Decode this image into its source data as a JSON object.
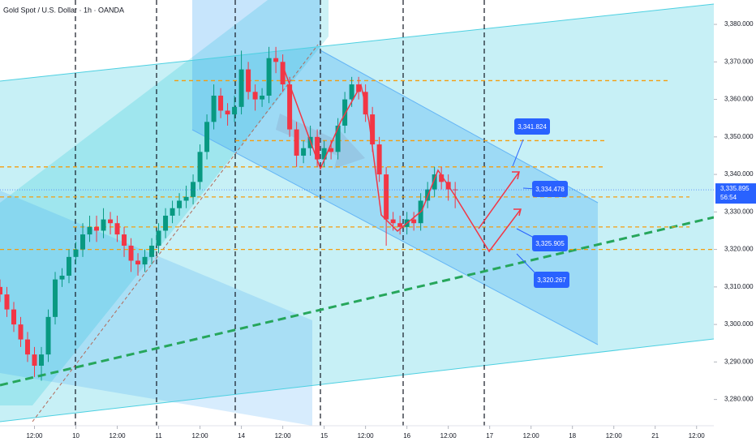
{
  "chart_data": {
    "type": "candlestick",
    "title": "Gold Spot / U.S. Dollar · 1h · OANDA",
    "x": [
      -22,
      -20,
      -18,
      -16,
      -14,
      -12,
      -10,
      -8,
      -6,
      -4,
      -2,
      0,
      2,
      4,
      6,
      8,
      10,
      12,
      14,
      16,
      18,
      20,
      22,
      24,
      26,
      28,
      30,
      32,
      34,
      36,
      38,
      40,
      42,
      44,
      46,
      48,
      50,
      52,
      54,
      56,
      58,
      60,
      62,
      64,
      66,
      68,
      70,
      72,
      74,
      76,
      78,
      80,
      82,
      84,
      86,
      88,
      90,
      92,
      94,
      96,
      98,
      100,
      102,
      104,
      106,
      108,
      110
    ],
    "open": [
      3310,
      3308,
      3304,
      3300,
      3296,
      3292,
      3289,
      3292,
      3302,
      3312,
      3313,
      3318,
      3320,
      3324,
      3326,
      3325,
      3328,
      3327,
      3324,
      3321,
      3317,
      3316,
      3318,
      3321,
      3325,
      3329,
      3331,
      3333,
      3334,
      3338,
      3346,
      3354,
      3361,
      3357,
      3356,
      3358,
      3368,
      3362,
      3360,
      3361,
      3371,
      3370,
      3364,
      3352,
      3345,
      3347,
      3350,
      3344,
      3347,
      3346,
      3353,
      3360,
      3364,
      3362,
      3356,
      3348,
      3340,
      3328,
      3327,
      3326,
      3328,
      3327,
      3333,
      3336,
      3340,
      3338,
      3336
    ],
    "high": [
      3312,
      3310,
      3306,
      3302,
      3298,
      3294,
      3294,
      3304,
      3314,
      3315,
      3320,
      3322,
      3327,
      3329,
      3329,
      3331,
      3330,
      3329,
      3326,
      3323,
      3319,
      3320,
      3323,
      3327,
      3331,
      3333,
      3335,
      3337,
      3340,
      3348,
      3356,
      3364,
      3363,
      3359,
      3361,
      3373,
      3370,
      3364,
      3363,
      3374,
      3374,
      3372,
      3366,
      3354,
      3349,
      3353,
      3352,
      3349,
      3349,
      3355,
      3362,
      3366,
      3366,
      3364,
      3358,
      3350,
      3342,
      3330,
      3329,
      3330,
      3330,
      3335,
      3338,
      3342,
      3342,
      3340,
      3338
    ],
    "low": [
      3306,
      3302,
      3298,
      3294,
      3290,
      3286,
      3285,
      3290,
      3300,
      3310,
      3311,
      3316,
      3318,
      3322,
      3322,
      3323,
      3324,
      3322,
      3318,
      3314,
      3313,
      3314,
      3316,
      3319,
      3323,
      3327,
      3329,
      3331,
      3332,
      3336,
      3344,
      3352,
      3355,
      3353,
      3354,
      3356,
      3360,
      3357,
      3358,
      3359,
      3367,
      3362,
      3350,
      3342,
      3343,
      3345,
      3342,
      3342,
      3344,
      3344,
      3351,
      3358,
      3360,
      3354,
      3346,
      3338,
      3321,
      3325,
      3324,
      3324,
      3325,
      3325,
      3331,
      3334,
      3336,
      3333,
      3331
    ],
    "close": [
      3308,
      3304,
      3300,
      3296,
      3292,
      3289,
      3292,
      3302,
      3312,
      3313,
      3318,
      3320,
      3324,
      3326,
      3325,
      3328,
      3327,
      3324,
      3321,
      3317,
      3316,
      3318,
      3321,
      3325,
      3329,
      3331,
      3333,
      3334,
      3338,
      3346,
      3354,
      3361,
      3357,
      3356,
      3358,
      3368,
      3362,
      3360,
      3361,
      3371,
      3370,
      3364,
      3352,
      3345,
      3347,
      3350,
      3344,
      3347,
      3346,
      3353,
      3360,
      3364,
      3362,
      3356,
      3348,
      3340,
      3328,
      3327,
      3326,
      3328,
      3327,
      3333,
      3336,
      3340,
      3338,
      3336,
      3335.895
    ],
    "up_color": "#089981",
    "down_color": "#f23645",
    "xlim": [
      -22,
      185
    ],
    "ylim": [
      3273,
      3386.5
    ],
    "xticks": [
      {
        "value": -12,
        "label": "12:00"
      },
      {
        "value": 0,
        "label": "10"
      },
      {
        "value": 12,
        "label": "12:00"
      },
      {
        "value": 24,
        "label": "11"
      },
      {
        "value": 36,
        "label": "12:00"
      },
      {
        "value": 48,
        "label": "14"
      },
      {
        "value": 60,
        "label": "12:00"
      },
      {
        "value": 72,
        "label": "15"
      },
      {
        "value": 84,
        "label": "12:00"
      },
      {
        "value": 96,
        "label": "16"
      },
      {
        "value": 108,
        "label": "12:00"
      },
      {
        "value": 120,
        "label": "17"
      },
      {
        "value": 132,
        "label": "12:00"
      },
      {
        "value": 144,
        "label": "18"
      },
      {
        "value": 156,
        "label": "12:00"
      },
      {
        "value": 168,
        "label": "21"
      },
      {
        "value": 180,
        "label": "12:00"
      }
    ],
    "yticks": [
      {
        "value": 3280,
        "label": "3,280.000"
      },
      {
        "value": 3290,
        "label": "3,290.000"
      },
      {
        "value": 3300,
        "label": "3,300.000"
      },
      {
        "value": 3310,
        "label": "3,310.000"
      },
      {
        "value": 3320,
        "label": "3,320.000"
      },
      {
        "value": 3330,
        "label": "3,330.000"
      },
      {
        "value": 3340,
        "label": "3,340.000"
      },
      {
        "value": 3350,
        "label": "3,350.000"
      },
      {
        "value": 3360,
        "label": "3,360.000"
      },
      {
        "value": 3370,
        "label": "3,370.000"
      },
      {
        "value": 3380,
        "label": "3,380.000"
      }
    ],
    "levels": [
      3365,
      3349,
      3342,
      3334,
      3326,
      3320
    ],
    "level_color": "#f59d0e",
    "targets": [
      {
        "value": 3341.824,
        "label": "3,341.824"
      },
      {
        "value": 3334.478,
        "label": "3,334.478"
      },
      {
        "value": 3325.905,
        "label": "3,325.905"
      },
      {
        "value": 3320.267,
        "label": "3,320.267"
      }
    ],
    "target_color": "#2962ff",
    "last_price": {
      "value": 3335.895,
      "label": "3,335.895"
    },
    "countdown": "56:54"
  }
}
